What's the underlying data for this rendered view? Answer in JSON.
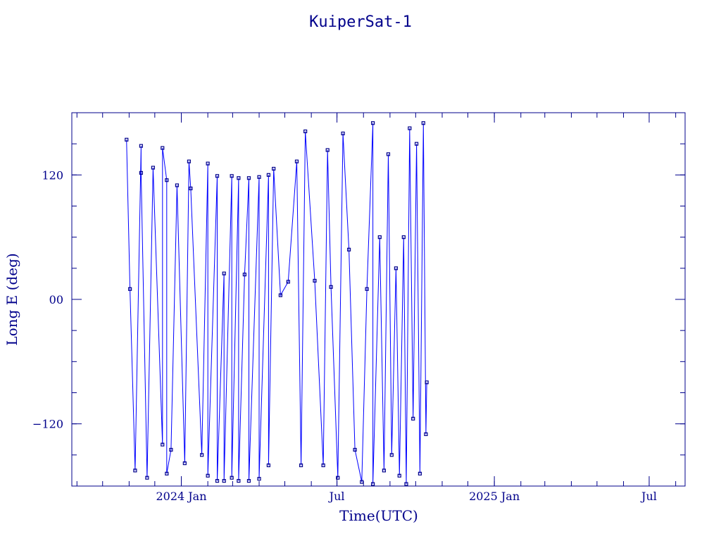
{
  "chart_data": {
    "type": "line",
    "title": "KuiperSat-1",
    "xlabel": "Time(UTC)",
    "ylabel": "Long E (deg)",
    "xlim": [
      "2023-08-26",
      "2025-08-12"
    ],
    "ylim": [
      -180,
      180
    ],
    "x_ticks": [
      {
        "date": "2024-01-01",
        "label": "2024 Jan"
      },
      {
        "date": "2024-07-01",
        "label": "Jul"
      },
      {
        "date": "2025-01-01",
        "label": "2025 Jan"
      },
      {
        "date": "2025-07-01",
        "label": "Jul"
      }
    ],
    "y_ticks": [
      {
        "value": 120,
        "label": "120"
      },
      {
        "value": 0,
        "label": "00"
      },
      {
        "value": -120,
        "label": "−120"
      }
    ],
    "grid": false,
    "legend": "none",
    "marker": "square",
    "series": [
      {
        "x": [
          "2023-10-29",
          "2023-11-02",
          "2023-11-08",
          "2023-11-15",
          "2023-11-15",
          "2023-11-22",
          "2023-11-29",
          "2023-12-10",
          "2023-12-10",
          "2023-12-15",
          "2023-12-15",
          "2023-12-20",
          "2023-12-27",
          "2024-01-05",
          "2024-01-10",
          "2024-01-12",
          "2024-01-25",
          "2024-02-01",
          "2024-02-01",
          "2024-02-12",
          "2024-02-12",
          "2024-02-20",
          "2024-02-20",
          "2024-02-29",
          "2024-02-29",
          "2024-03-08",
          "2024-03-08",
          "2024-03-15",
          "2024-03-20",
          "2024-03-20",
          "2024-04-01",
          "2024-04-01",
          "2024-04-12",
          "2024-04-12",
          "2024-04-18",
          "2024-04-26",
          "2024-05-05",
          "2024-05-15",
          "2024-05-20",
          "2024-05-25",
          "2024-06-05",
          "2024-06-15",
          "2024-06-20",
          "2024-06-24",
          "2024-07-02",
          "2024-07-08",
          "2024-07-15",
          "2024-07-22",
          "2024-07-30",
          "2024-08-05",
          "2024-08-12",
          "2024-08-12",
          "2024-08-20",
          "2024-08-25",
          "2024-08-30",
          "2024-09-03",
          "2024-09-08",
          "2024-09-12",
          "2024-09-17",
          "2024-09-20",
          "2024-09-24",
          "2024-09-28",
          "2024-10-02",
          "2024-10-06",
          "2024-10-10",
          "2024-10-13",
          "2024-10-14"
        ],
        "y": [
          154,
          10,
          -165,
          148,
          122,
          -172,
          127,
          -140,
          146,
          115,
          -168,
          -145,
          110,
          -158,
          133,
          107,
          -150,
          131,
          -170,
          119,
          -175,
          25,
          -175,
          119,
          -172,
          117,
          -175,
          24,
          117,
          -175,
          118,
          -173,
          120,
          -160,
          126,
          4,
          17,
          133,
          -160,
          162,
          18,
          -160,
          144,
          12,
          -172,
          160,
          48,
          -145,
          -176,
          10,
          170,
          -178,
          60,
          -165,
          140,
          -150,
          30,
          -170,
          60,
          -178,
          165,
          -115,
          150,
          -168,
          170,
          -130,
          -80
        ]
      }
    ]
  }
}
